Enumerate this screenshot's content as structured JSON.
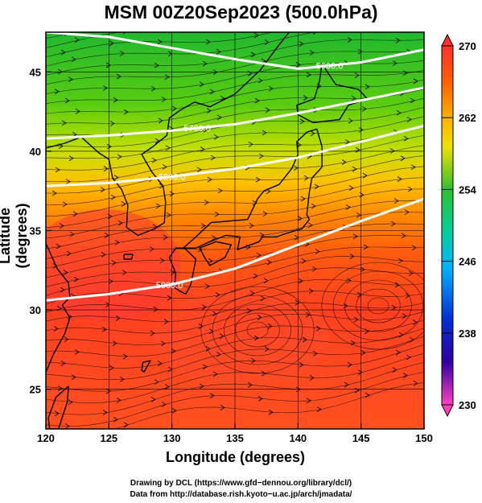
{
  "title": "MSM 00Z20Sep2023 (500.0hPa)",
  "axes": {
    "xlabel": "Longitude (degrees)",
    "ylabel": "Latitude  (degrees)",
    "x_ticks": [
      "120",
      "125",
      "130",
      "135",
      "140",
      "145",
      "150"
    ],
    "y_ticks": [
      "25",
      "30",
      "35",
      "40",
      "45"
    ],
    "x_range": [
      120,
      150
    ],
    "y_range": [
      22.5,
      47.5
    ]
  },
  "colorbar": {
    "ticks": [
      "270",
      "262",
      "254",
      "246",
      "238",
      "230"
    ],
    "range": [
      230,
      270
    ],
    "colors": [
      "#ff40c0",
      "#c000e0",
      "#3000c8",
      "#0050ff",
      "#00b0ff",
      "#00d8c0",
      "#00c850",
      "#20c020",
      "#80d000",
      "#d8e000",
      "#ffc000",
      "#ff8000",
      "#ff5000",
      "#ff3030"
    ]
  },
  "contours": [
    {
      "label": "5600.0",
      "lat_at": [
        47.5,
        47.2,
        46.5,
        45.8,
        45.2,
        45.6,
        46.4
      ]
    },
    {
      "label": "5700.0",
      "lat_at": [
        40.8,
        41.0,
        41.3,
        41.7,
        42.4,
        43.2,
        44.0
      ]
    },
    {
      "label": "5800.0",
      "lat_at": [
        37.8,
        38.0,
        38.4,
        38.9,
        39.6,
        40.6,
        41.6
      ]
    },
    {
      "label": "5900.0",
      "lat_at": [
        30.6,
        31.0,
        31.6,
        32.6,
        34.1,
        35.6,
        37.0
      ]
    }
  ],
  "credit_1": "Drawing by DCL (https://www.gfd−dennou.org/library/dcl/)",
  "credit_2": "Data from http://database.rish.kyoto−u.ac.jp/arch/jmadata/"
}
